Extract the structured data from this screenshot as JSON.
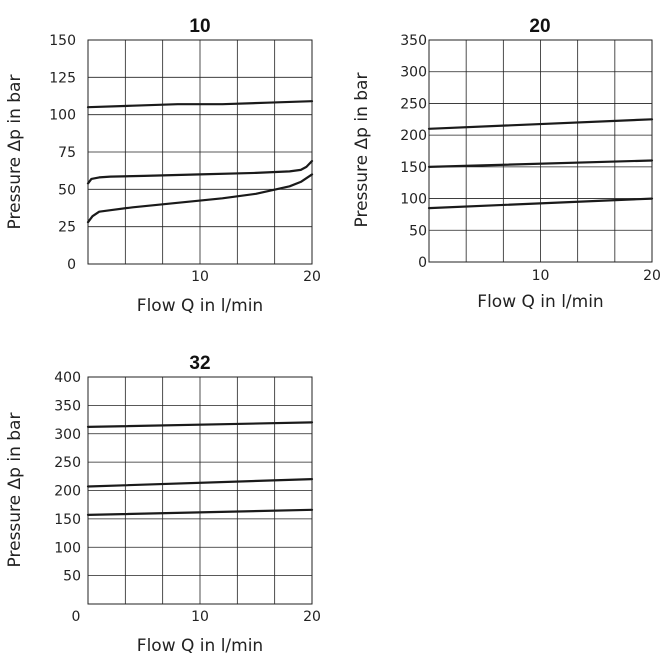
{
  "chart_data": [
    {
      "type": "line",
      "title": "10",
      "xlabel": "Flow Q in l/min",
      "ylabel": "Pressure Δp in bar",
      "xlim": [
        0,
        20
      ],
      "ylim": [
        0,
        150
      ],
      "x_ticks": [
        10,
        20
      ],
      "y_ticks": [
        0,
        25,
        50,
        75,
        100,
        125,
        150
      ],
      "grid": true,
      "series": [
        {
          "x": [
            0,
            4,
            8,
            12,
            16,
            20
          ],
          "values": [
            105,
            106,
            107,
            107,
            108,
            109
          ]
        },
        {
          "x": [
            0,
            0.3,
            1,
            2,
            5,
            10,
            15,
            18,
            19,
            19.5,
            20
          ],
          "values": [
            54,
            57,
            58,
            58.5,
            59,
            60,
            61,
            62,
            63,
            65,
            69
          ]
        },
        {
          "x": [
            0,
            0.4,
            1,
            2,
            4,
            8,
            12,
            15,
            18,
            19,
            20
          ],
          "values": [
            28,
            32,
            35,
            36,
            38,
            41,
            44,
            47,
            52,
            55,
            60
          ]
        }
      ]
    },
    {
      "type": "line",
      "title": "20",
      "xlabel": "Flow Q in l/min",
      "ylabel": "Pressure Δp in bar",
      "xlim": [
        0,
        20
      ],
      "ylim": [
        0,
        350
      ],
      "x_ticks": [
        10,
        20
      ],
      "y_ticks": [
        0,
        50,
        100,
        150,
        200,
        250,
        300,
        350
      ],
      "grid": true,
      "series": [
        {
          "x": [
            0,
            20
          ],
          "values": [
            210,
            225
          ]
        },
        {
          "x": [
            0,
            20
          ],
          "values": [
            150,
            160
          ]
        },
        {
          "x": [
            0,
            20
          ],
          "values": [
            85,
            100
          ]
        }
      ]
    },
    {
      "type": "line",
      "title": "32",
      "xlabel": "Flow Q in l/min",
      "ylabel": "Pressure Δp in bar",
      "xlim": [
        0,
        20
      ],
      "ylim": [
        0,
        400
      ],
      "x_ticks": [
        0,
        10,
        20
      ],
      "y_ticks": [
        50,
        100,
        150,
        200,
        250,
        300,
        350,
        400
      ],
      "grid": true,
      "series": [
        {
          "x": [
            0,
            20
          ],
          "values": [
            312,
            320
          ]
        },
        {
          "x": [
            0,
            20
          ],
          "values": [
            207,
            220
          ]
        },
        {
          "x": [
            0,
            20
          ],
          "values": [
            157,
            166
          ]
        }
      ]
    }
  ]
}
